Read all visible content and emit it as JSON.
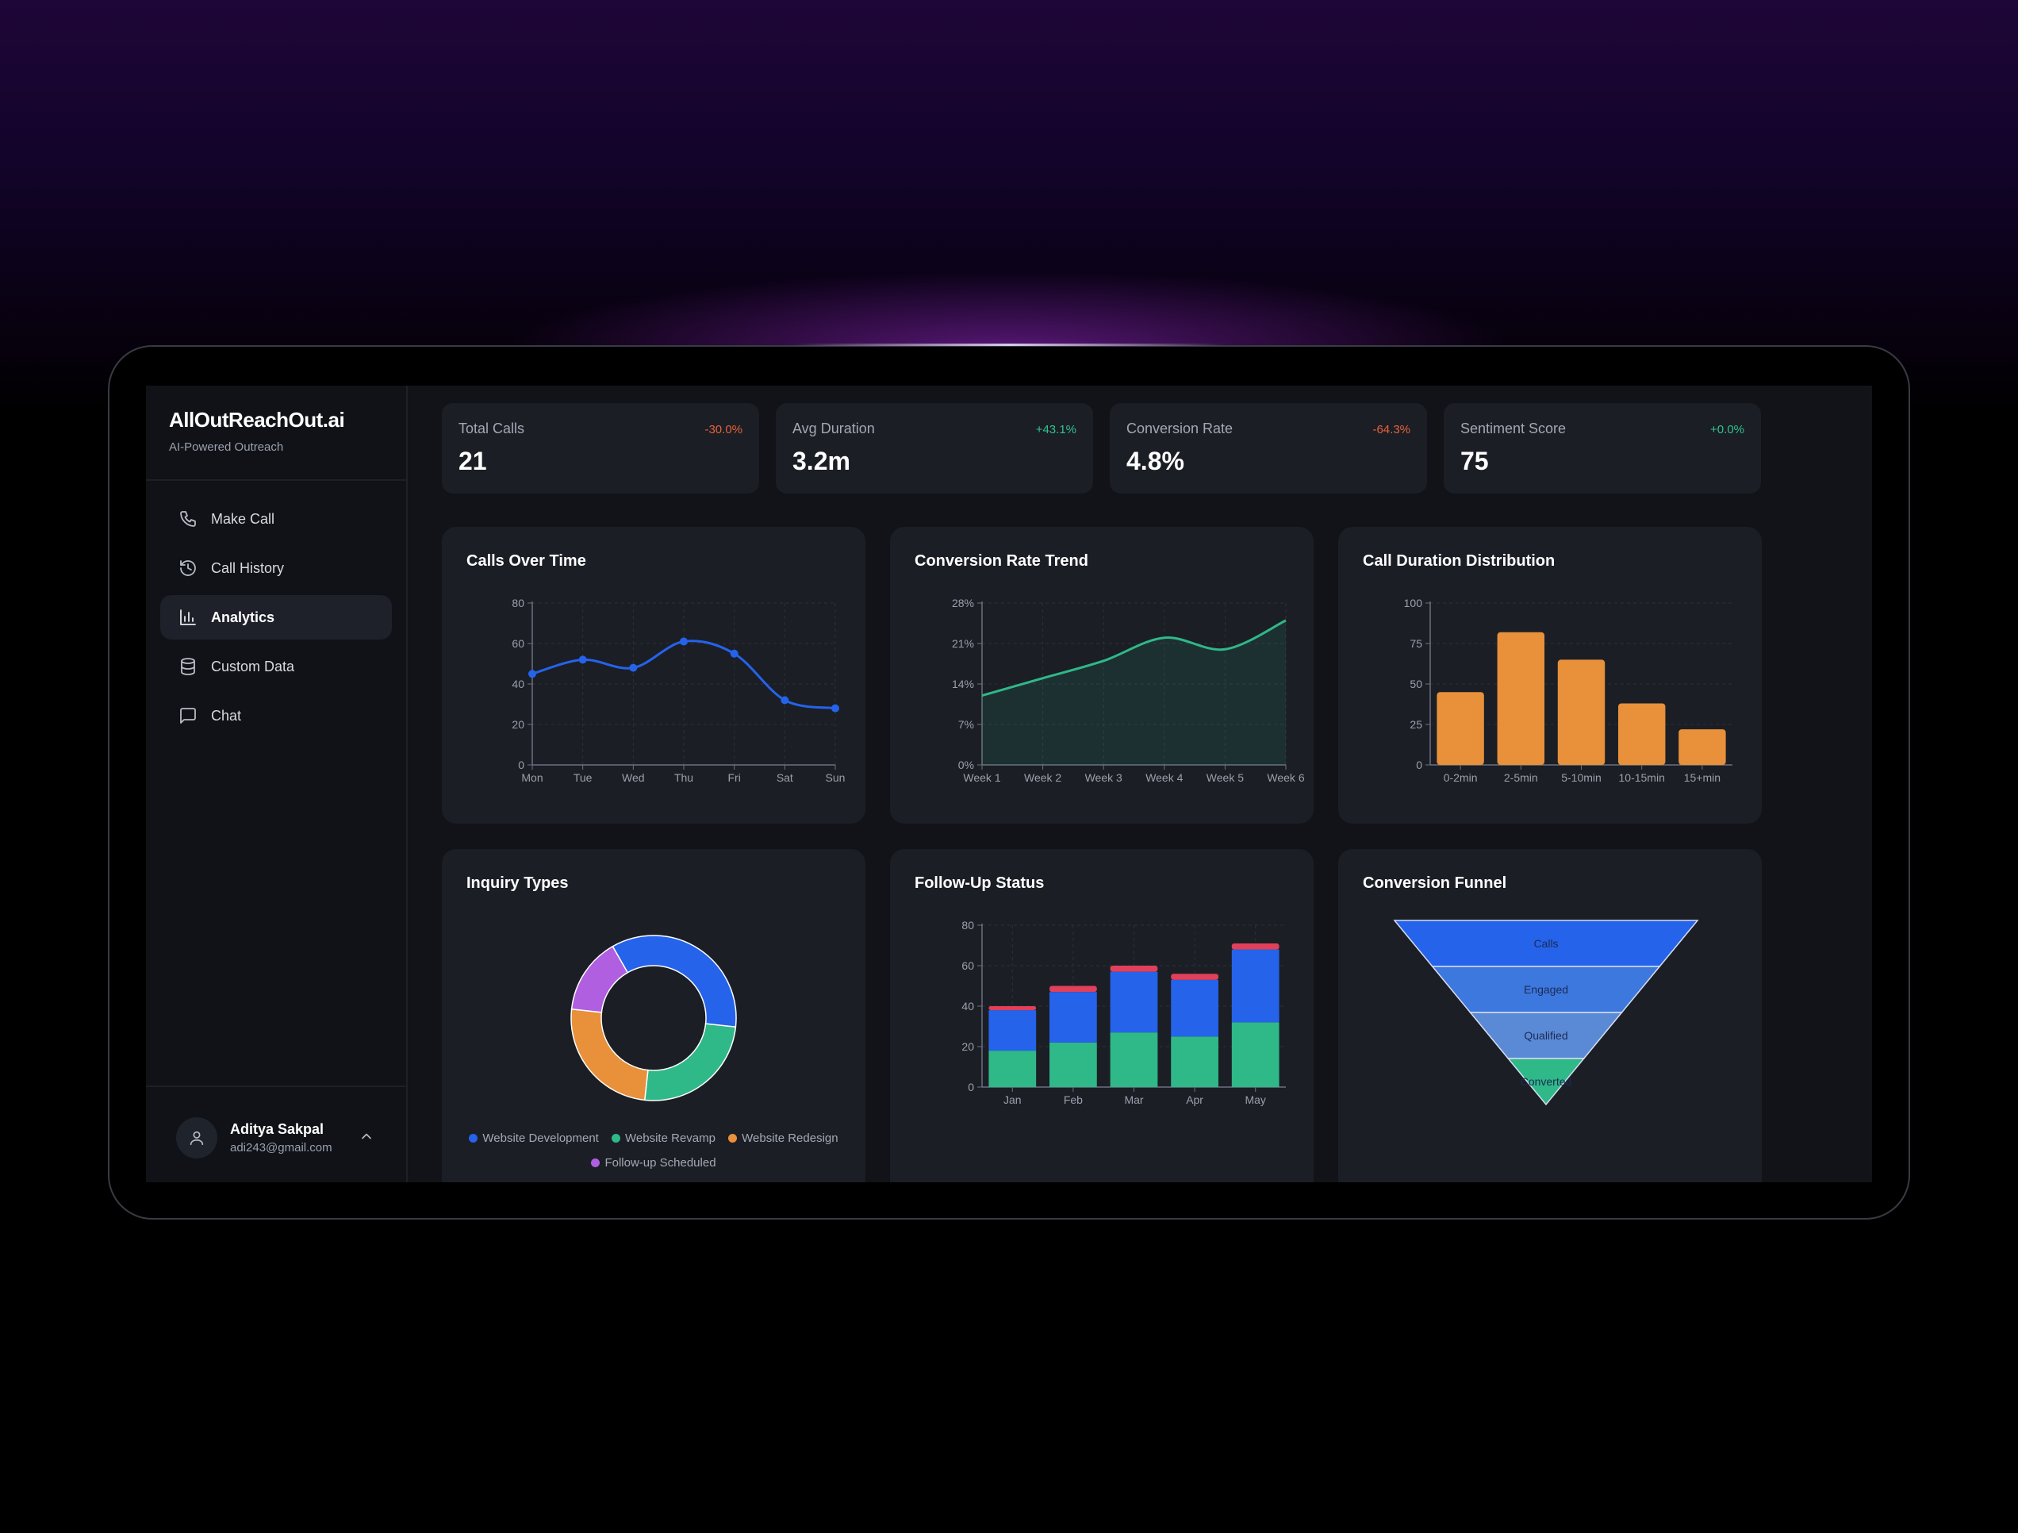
{
  "brand": {
    "name": "AllOutReachOut.ai",
    "subtitle": "AI-Powered Outreach"
  },
  "nav": [
    {
      "label": "Make Call",
      "icon": "phone-icon"
    },
    {
      "label": "Call History",
      "icon": "history-icon"
    },
    {
      "label": "Analytics",
      "icon": "bar-chart-icon",
      "active": true
    },
    {
      "label": "Custom Data",
      "icon": "database-icon"
    },
    {
      "label": "Chat",
      "icon": "chat-icon"
    }
  ],
  "user": {
    "name": "Aditya Sakpal",
    "email": "adi243@gmail.com"
  },
  "stats": [
    {
      "label": "Total Calls",
      "value": "21",
      "change": "-30.0%",
      "change_color": "#e8613b"
    },
    {
      "label": "Avg Duration",
      "value": "3.2m",
      "change": "+43.1%",
      "change_color": "#30c48d"
    },
    {
      "label": "Conversion Rate",
      "value": "4.8%",
      "change": "-64.3%",
      "change_color": "#e8613b"
    },
    {
      "label": "Sentiment Score",
      "value": "75",
      "change": "+0.0%",
      "change_color": "#30c48d"
    }
  ],
  "cards": {
    "calls_over_time": {
      "title": "Calls Over Time"
    },
    "conversion_trend": {
      "title": "Conversion Rate Trend"
    },
    "duration_dist": {
      "title": "Call Duration Distribution"
    },
    "inquiry_types": {
      "title": "Inquiry Types"
    },
    "followup_status": {
      "title": "Follow-Up Status"
    },
    "funnel": {
      "title": "Conversion Funnel"
    }
  },
  "colors": {
    "blue": "#2563eb",
    "green": "#2fb888",
    "orange": "#e8913a",
    "purple": "#b05fe0",
    "red": "#e0405a",
    "bg": "#111318",
    "card": "#1b1e25"
  },
  "chart_data": [
    {
      "id": "calls_over_time",
      "type": "line",
      "title": "Calls Over Time",
      "categories": [
        "Mon",
        "Tue",
        "Wed",
        "Thu",
        "Fri",
        "Sat",
        "Sun"
      ],
      "values": [
        45,
        52,
        48,
        61,
        55,
        32,
        28
      ],
      "ylim": [
        0,
        80
      ],
      "yticks": [
        0,
        20,
        40,
        60,
        80
      ],
      "color": "#2563eb",
      "grid": true
    },
    {
      "id": "conversion_trend",
      "type": "area",
      "title": "Conversion Rate Trend",
      "categories": [
        "Week 1",
        "Week 2",
        "Week 3",
        "Week 4",
        "Week 5",
        "Week 6"
      ],
      "values": [
        12,
        15,
        18,
        22,
        20,
        25
      ],
      "ylim": [
        0,
        28
      ],
      "yticks": [
        "0%",
        "7%",
        "14%",
        "21%",
        "28%"
      ],
      "color": "#2fb888",
      "grid": true
    },
    {
      "id": "duration_dist",
      "type": "bar",
      "title": "Call Duration Distribution",
      "categories": [
        "0-2min",
        "2-5min",
        "5-10min",
        "10-15min",
        "15+min"
      ],
      "values": [
        45,
        82,
        65,
        38,
        22
      ],
      "ylim": [
        0,
        100
      ],
      "yticks": [
        0,
        25,
        50,
        75,
        100
      ],
      "color": "#e8913a",
      "grid": true
    },
    {
      "id": "inquiry_types",
      "type": "pie",
      "title": "Inquiry Types",
      "series": [
        {
          "name": "Website Development",
          "value": 35,
          "color": "#2563eb"
        },
        {
          "name": "Website Revamp",
          "value": 25,
          "color": "#2fb888"
        },
        {
          "name": "Website Redesign",
          "value": 25,
          "color": "#e8913a"
        },
        {
          "name": "Follow-up Scheduled",
          "value": 15,
          "color": "#b05fe0"
        }
      ],
      "legend": "bottom"
    },
    {
      "id": "followup_status",
      "type": "bar",
      "title": "Follow-Up Status",
      "stacked": true,
      "categories": [
        "Jan",
        "Feb",
        "Mar",
        "Apr",
        "May"
      ],
      "series": [
        {
          "color": "#2fb888",
          "values": [
            18,
            22,
            27,
            25,
            32
          ]
        },
        {
          "color": "#2563eb",
          "values": [
            20,
            25,
            30,
            28,
            36
          ]
        },
        {
          "color": "#e0405a",
          "values": [
            2,
            3,
            3,
            3,
            3
          ]
        }
      ],
      "ylim": [
        0,
        80
      ],
      "yticks": [
        0,
        20,
        40,
        60,
        80
      ],
      "grid": true
    },
    {
      "id": "funnel",
      "type": "funnel",
      "title": "Conversion Funnel",
      "stages": [
        {
          "label": "Calls",
          "color": "#2563eb"
        },
        {
          "label": "Engaged",
          "color": "#3d78de"
        },
        {
          "label": "Qualified",
          "color": "#5a8ad6"
        },
        {
          "label": "Converted",
          "color": "#2fb888"
        }
      ]
    }
  ]
}
